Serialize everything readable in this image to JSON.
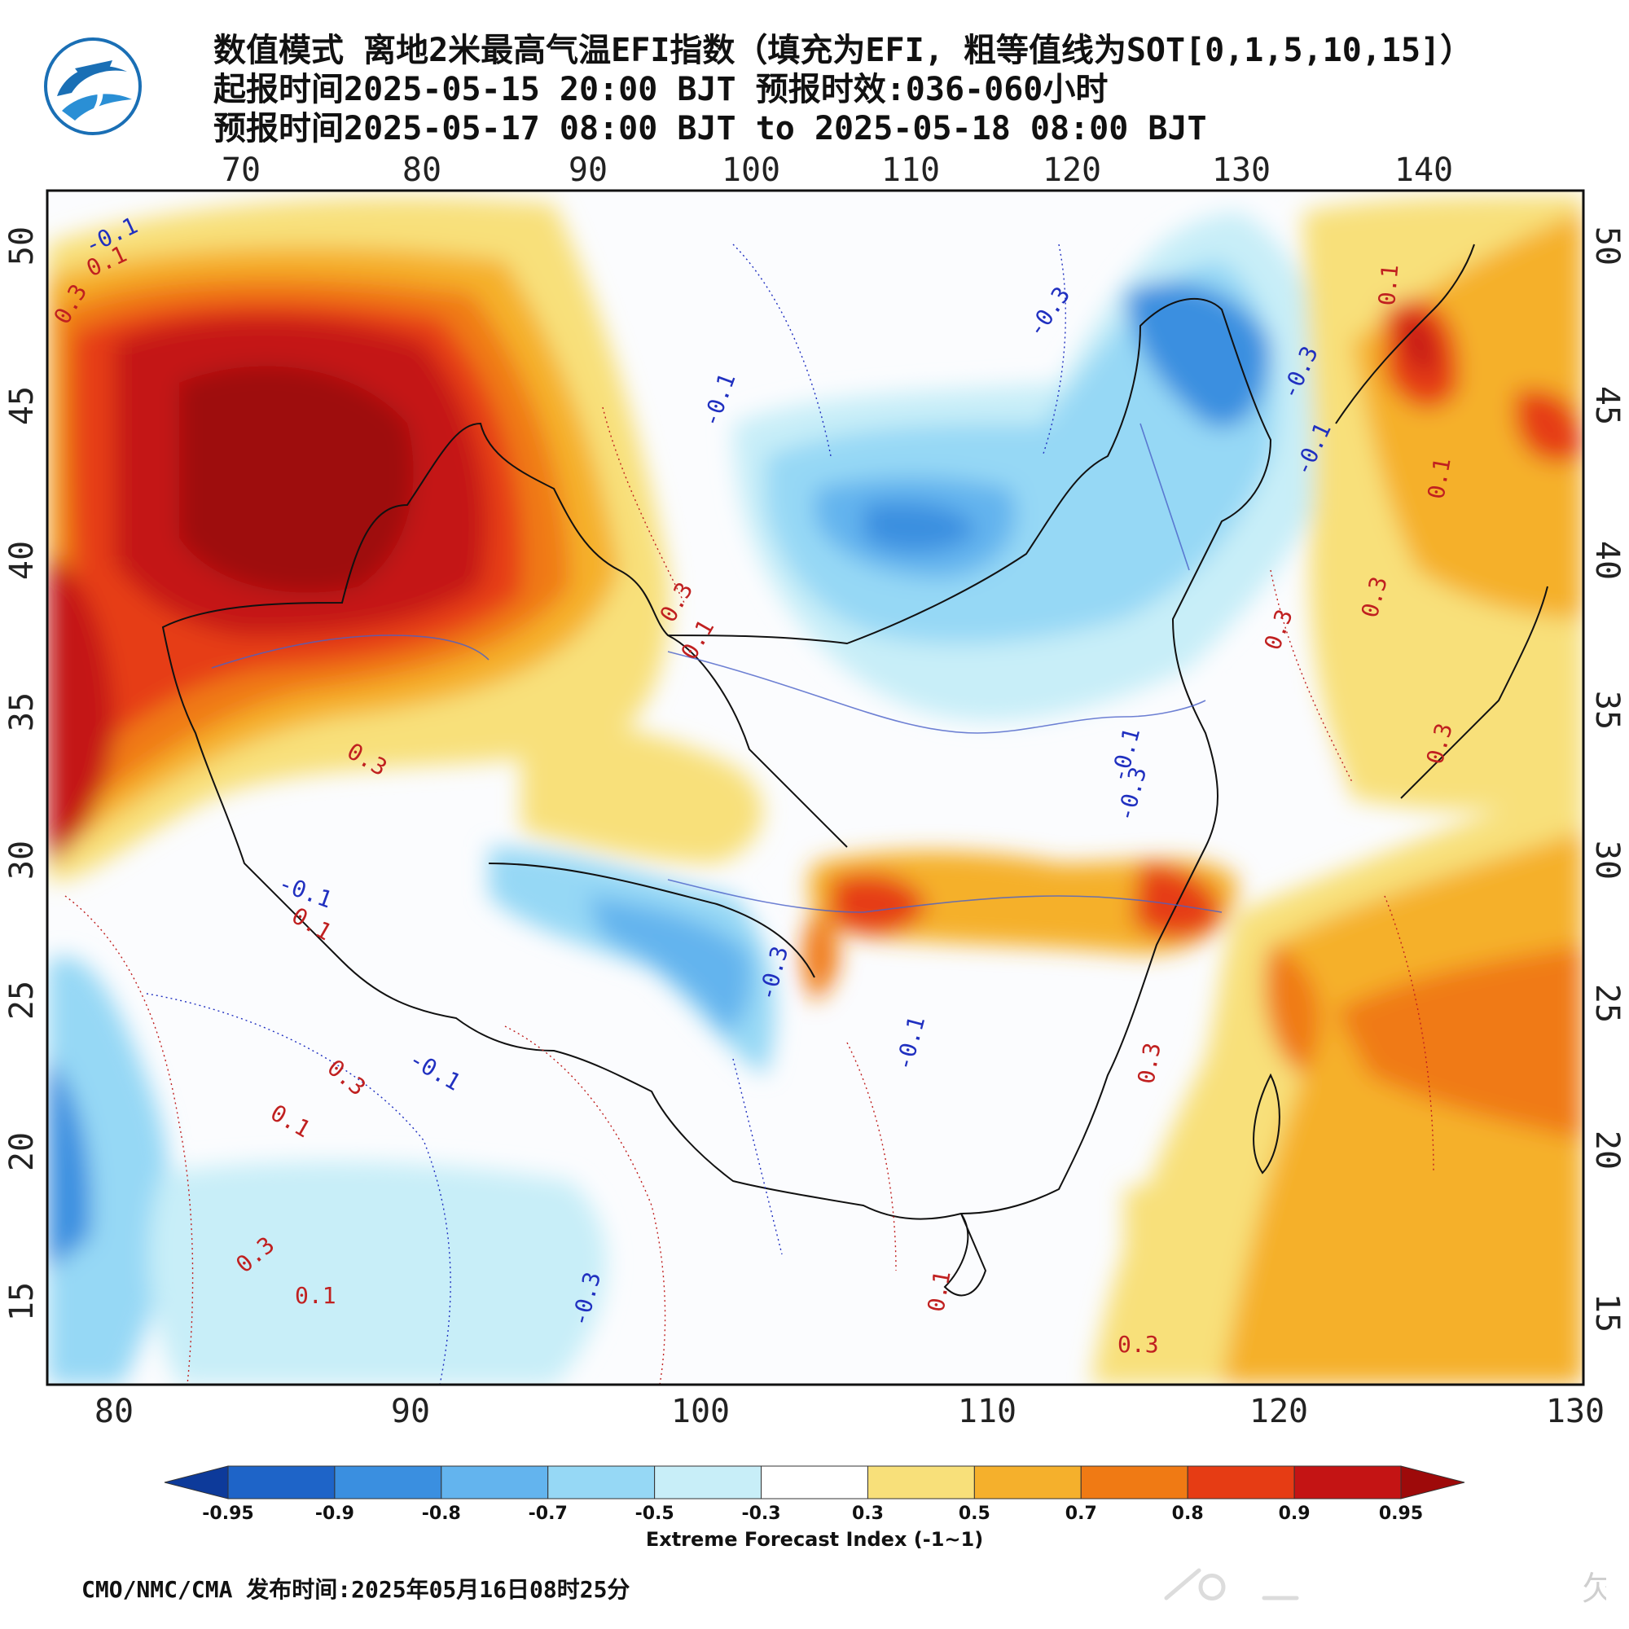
{
  "header": {
    "title_line1": "数值模式 离地2米最高气温EFI指数（填充为EFI, 粗等值线为SOT[0,1,5,10,15]）",
    "title_line2": "起报时间2025-05-15 20:00 BJT 预报时效:036-060小时",
    "title_line3": "预报时间2025-05-17 08:00 BJT to 2025-05-18 08:00 BJT"
  },
  "logo": {
    "icon": "cma-weather-logo-icon",
    "color": "#1a6fb5"
  },
  "map": {
    "top_longitude_labels": [
      "70",
      "80",
      "90",
      "100",
      "110",
      "120",
      "130",
      "140"
    ],
    "bottom_longitude_labels": [
      "80",
      "90",
      "100",
      "110",
      "120",
      "130"
    ],
    "latitude_labels": [
      "50",
      "45",
      "40",
      "35",
      "30",
      "25",
      "20",
      "15"
    ],
    "contour_labels": [
      {
        "text": "-0.1",
        "color": "#2030c0"
      },
      {
        "text": "0.1",
        "color": "#c02020"
      },
      {
        "text": "0.3",
        "color": "#c02020"
      },
      {
        "text": "-0.3",
        "color": "#2030c0"
      },
      {
        "text": "-0.1",
        "color": "#2030c0"
      },
      {
        "text": "-0.3",
        "color": "#2030c0"
      },
      {
        "text": "-0.1",
        "color": "#2030c0"
      },
      {
        "text": "-0.1",
        "color": "#2030c0"
      },
      {
        "text": "0.1",
        "color": "#c02020"
      },
      {
        "text": "0.3",
        "color": "#c02020"
      },
      {
        "text": "-0.3",
        "color": "#2030c0"
      },
      {
        "text": "0.1",
        "color": "#c02020"
      },
      {
        "text": "0.3",
        "color": "#c02020"
      },
      {
        "text": "0.3",
        "color": "#c02020"
      },
      {
        "text": "0.3",
        "color": "#c02020"
      },
      {
        "text": "0.1",
        "color": "#c02020"
      },
      {
        "text": "-0.1",
        "color": "#2030c0"
      },
      {
        "text": "0.1",
        "color": "#c02020"
      },
      {
        "text": "-0.3",
        "color": "#2030c0"
      },
      {
        "text": "-0.1",
        "color": "#2030c0"
      },
      {
        "text": "0.3",
        "color": "#c02020"
      },
      {
        "text": "0.1",
        "color": "#c02020"
      },
      {
        "text": "-0.1",
        "color": "#2030c0"
      },
      {
        "text": "0.3",
        "color": "#c02020"
      },
      {
        "text": "0.3",
        "color": "#c02020"
      },
      {
        "text": "-0.3",
        "color": "#2030c0"
      },
      {
        "text": "0.1",
        "color": "#c02020"
      },
      {
        "text": "0.3",
        "color": "#c02020"
      },
      {
        "text": "0.1",
        "color": "#c02020"
      },
      {
        "text": "0.3",
        "color": "#c02020"
      }
    ]
  },
  "colorbar": {
    "title": "Extreme Forecast Index (-1~1)",
    "ticks": [
      "-0.95",
      "-0.9",
      "-0.8",
      "-0.7",
      "-0.5",
      "-0.3",
      "0.3",
      "0.5",
      "0.7",
      "0.8",
      "0.9",
      "0.95"
    ],
    "colors": [
      "#0d3a9a",
      "#1e64c8",
      "#3a8fe0",
      "#63b4ee",
      "#96d8f5",
      "#c8eef8",
      "#ffffff",
      "#f8e07a",
      "#f5b02c",
      "#f07a14",
      "#e63c14",
      "#c41414",
      "#9e0a0a"
    ]
  },
  "footer": {
    "text": "CMO/NMC/CMA 发布时间:2025年05月16日08时25分"
  },
  "watermark": {
    "text": "欠"
  }
}
